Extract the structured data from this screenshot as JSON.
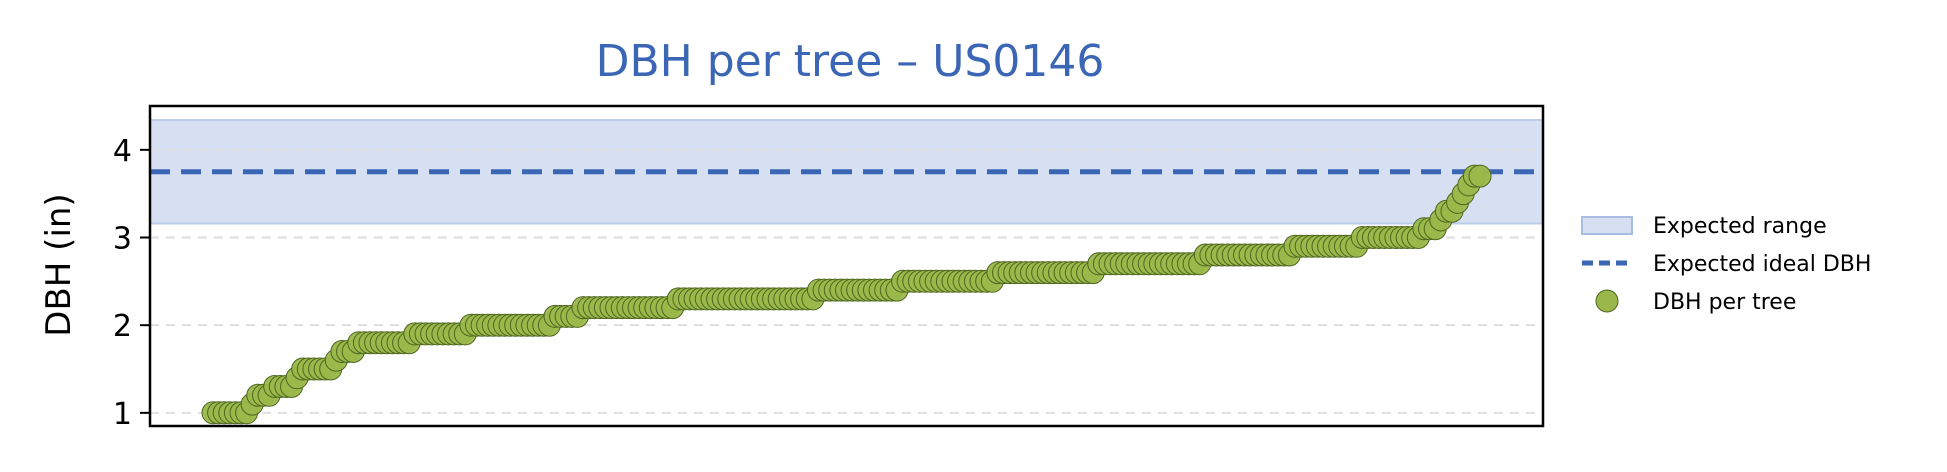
{
  "chart_data": {
    "type": "scatter",
    "title": "DBH per tree – US0146",
    "xlabel": "",
    "ylabel": "DBH (in)",
    "ylim": [
      0.85,
      4.5
    ],
    "yticks": [
      1,
      2,
      3,
      4
    ],
    "xticks": [],
    "grid": {
      "y": true,
      "style": "dashed"
    },
    "legend_position": "right",
    "expected_range": {
      "label": "Expected range",
      "min": 3.16,
      "max": 4.34,
      "color": "#d6e0f2"
    },
    "ideal": {
      "label": "Expected ideal DBH",
      "value": 3.75,
      "color": "#3a66b5"
    },
    "points_series": {
      "label": "DBH per tree",
      "color": "#9ab84a",
      "edge_color": "#4e6620",
      "values": [
        1.0,
        1.0,
        1.0,
        1.0,
        1.0,
        1.0,
        1.0,
        1.1,
        1.2,
        1.2,
        1.2,
        1.3,
        1.3,
        1.3,
        1.3,
        1.4,
        1.5,
        1.5,
        1.5,
        1.5,
        1.5,
        1.5,
        1.6,
        1.7,
        1.7,
        1.7,
        1.8,
        1.8,
        1.8,
        1.8,
        1.8,
        1.8,
        1.8,
        1.8,
        1.8,
        1.8,
        1.9,
        1.9,
        1.9,
        1.9,
        1.9,
        1.9,
        1.9,
        1.9,
        1.9,
        1.9,
        2.0,
        2.0,
        2.0,
        2.0,
        2.0,
        2.0,
        2.0,
        2.0,
        2.0,
        2.0,
        2.0,
        2.0,
        2.0,
        2.0,
        2.0,
        2.1,
        2.1,
        2.1,
        2.1,
        2.1,
        2.2,
        2.2,
        2.2,
        2.2,
        2.2,
        2.2,
        2.2,
        2.2,
        2.2,
        2.2,
        2.2,
        2.2,
        2.2,
        2.2,
        2.2,
        2.2,
        2.2,
        2.3,
        2.3,
        2.3,
        2.3,
        2.3,
        2.3,
        2.3,
        2.3,
        2.3,
        2.3,
        2.3,
        2.3,
        2.3,
        2.3,
        2.3,
        2.3,
        2.3,
        2.3,
        2.3,
        2.3,
        2.3,
        2.3,
        2.3,
        2.3,
        2.3,
        2.4,
        2.4,
        2.4,
        2.4,
        2.4,
        2.4,
        2.4,
        2.4,
        2.4,
        2.4,
        2.4,
        2.4,
        2.4,
        2.4,
        2.4,
        2.5,
        2.5,
        2.5,
        2.5,
        2.5,
        2.5,
        2.5,
        2.5,
        2.5,
        2.5,
        2.5,
        2.5,
        2.5,
        2.5,
        2.5,
        2.5,
        2.5,
        2.6,
        2.6,
        2.6,
        2.6,
        2.6,
        2.6,
        2.6,
        2.6,
        2.6,
        2.6,
        2.6,
        2.6,
        2.6,
        2.6,
        2.6,
        2.6,
        2.6,
        2.6,
        2.7,
        2.7,
        2.7,
        2.7,
        2.7,
        2.7,
        2.7,
        2.7,
        2.7,
        2.7,
        2.7,
        2.7,
        2.7,
        2.7,
        2.7,
        2.7,
        2.7,
        2.7,
        2.7,
        2.8,
        2.8,
        2.8,
        2.8,
        2.8,
        2.8,
        2.8,
        2.8,
        2.8,
        2.8,
        2.8,
        2.8,
        2.8,
        2.8,
        2.8,
        2.8,
        2.9,
        2.9,
        2.9,
        2.9,
        2.9,
        2.9,
        2.9,
        2.9,
        2.9,
        2.9,
        2.9,
        2.9,
        3.0,
        3.0,
        3.0,
        3.0,
        3.0,
        3.0,
        3.0,
        3.0,
        3.0,
        3.0,
        3.0,
        3.1,
        3.1,
        3.1,
        3.2,
        3.3,
        3.3,
        3.4,
        3.5,
        3.6,
        3.7,
        3.7
      ]
    }
  }
}
